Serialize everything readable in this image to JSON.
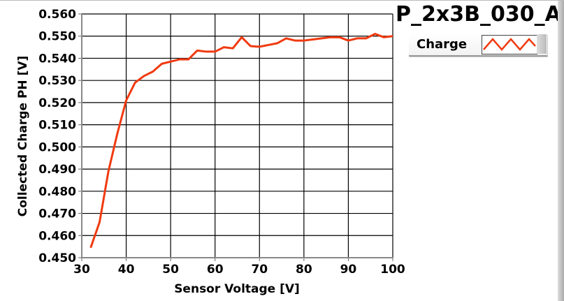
{
  "title": "P_2x3B_030_A",
  "legend": {
    "label": "Charge"
  },
  "colors": {
    "series": "#f03a10",
    "grid": "#000000"
  },
  "chart_data": {
    "type": "line",
    "title": "P_2x3B_030_A",
    "xlabel": "Sensor Voltage [V]",
    "ylabel": "Collected Charge PH [V]",
    "xlim": [
      30,
      100
    ],
    "ylim": [
      0.45,
      0.56
    ],
    "xticks": [
      30,
      40,
      50,
      60,
      70,
      80,
      90,
      100
    ],
    "xtick_labels": [
      "30",
      "40",
      "50",
      "60",
      "70",
      "80",
      "90",
      "100"
    ],
    "yticks": [
      0.45,
      0.46,
      0.47,
      0.48,
      0.49,
      0.5,
      0.51,
      0.52,
      0.53,
      0.54,
      0.55,
      0.56
    ],
    "ytick_labels": [
      "0.450",
      "0.460",
      "0.470",
      "0.480",
      "0.490",
      "0.500",
      "0.510",
      "0.520",
      "0.530",
      "0.540",
      "0.550",
      "0.560"
    ],
    "grid": true,
    "legend_position": "top-right",
    "series": [
      {
        "name": "Charge",
        "x": [
          32,
          34,
          36,
          38,
          40,
          42,
          44,
          46,
          48,
          50,
          52,
          54,
          56,
          58,
          60,
          62,
          64,
          66,
          68,
          70,
          72,
          74,
          76,
          78,
          80,
          82,
          84,
          86,
          88,
          90,
          92,
          94,
          96,
          98,
          100
        ],
        "y": [
          0.4545,
          0.466,
          0.489,
          0.506,
          0.521,
          0.529,
          0.532,
          0.534,
          0.5375,
          0.5385,
          0.5395,
          0.5395,
          0.5435,
          0.543,
          0.543,
          0.545,
          0.5445,
          0.5495,
          0.5455,
          0.5452,
          0.546,
          0.5468,
          0.549,
          0.548,
          0.548,
          0.5485,
          0.549,
          0.5495,
          0.5495,
          0.548,
          0.549,
          0.549,
          0.551,
          0.5495,
          0.55
        ]
      }
    ]
  }
}
